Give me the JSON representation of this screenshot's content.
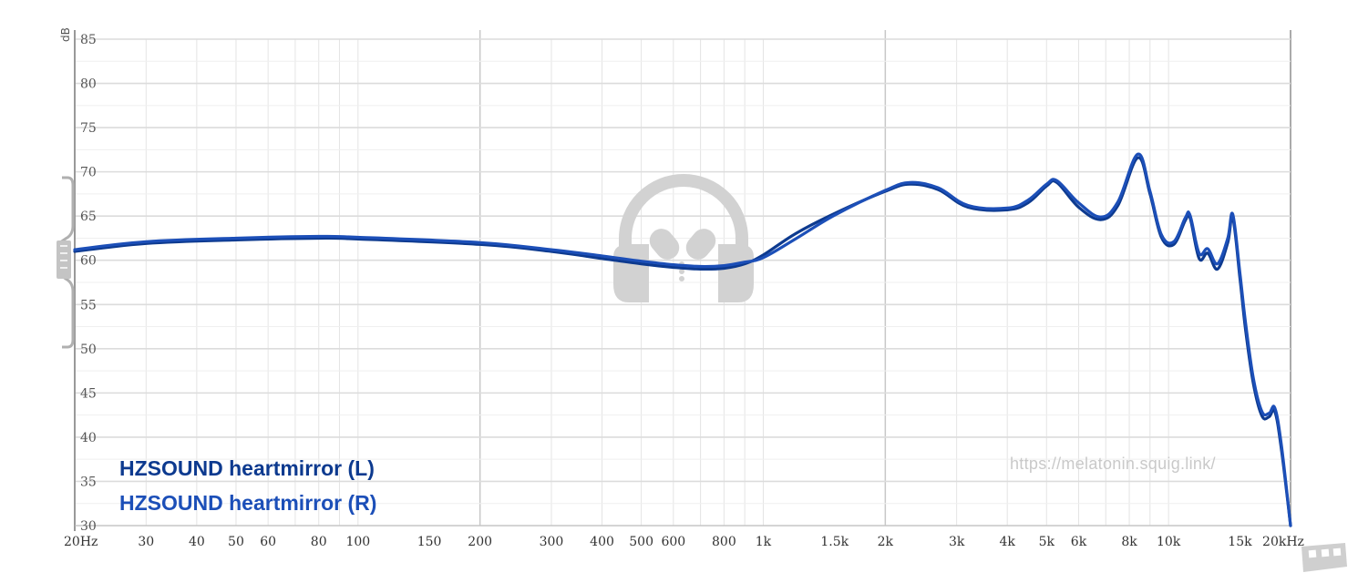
{
  "chart_data": {
    "type": "line",
    "xscale": "log",
    "xlim": [
      20,
      20000
    ],
    "ylim": [
      30,
      85
    ],
    "y_unit": "dB",
    "y_ticks": [
      85,
      80,
      75,
      70,
      65,
      60,
      55,
      50,
      45,
      40,
      35,
      30
    ],
    "x_ticks": [
      {
        "value": 20,
        "label": "20Hz"
      },
      {
        "value": 30,
        "label": "30"
      },
      {
        "value": 40,
        "label": "40"
      },
      {
        "value": 50,
        "label": "50"
      },
      {
        "value": 60,
        "label": "60"
      },
      {
        "value": 80,
        "label": "80"
      },
      {
        "value": 100,
        "label": "100"
      },
      {
        "value": 150,
        "label": "150"
      },
      {
        "value": 200,
        "label": "200"
      },
      {
        "value": 300,
        "label": "300"
      },
      {
        "value": 400,
        "label": "400"
      },
      {
        "value": 500,
        "label": "500"
      },
      {
        "value": 600,
        "label": "600"
      },
      {
        "value": 800,
        "label": "800"
      },
      {
        "value": 1000,
        "label": "1k"
      },
      {
        "value": 1500,
        "label": "1.5k"
      },
      {
        "value": 2000,
        "label": "2k"
      },
      {
        "value": 3000,
        "label": "3k"
      },
      {
        "value": 4000,
        "label": "4k"
      },
      {
        "value": 5000,
        "label": "5k"
      },
      {
        "value": 6000,
        "label": "6k"
      },
      {
        "value": 8000,
        "label": "8k"
      },
      {
        "value": 10000,
        "label": "10k"
      },
      {
        "value": 15000,
        "label": "15k"
      },
      {
        "value": 20000,
        "label": "20kHz"
      }
    ],
    "series": [
      {
        "name": "HZSOUND heartmirror (L)",
        "color": "#0d3a8f",
        "points": [
          [
            20,
            61.0
          ],
          [
            30,
            61.9
          ],
          [
            50,
            62.3
          ],
          [
            80,
            62.5
          ],
          [
            100,
            62.4
          ],
          [
            200,
            61.8
          ],
          [
            300,
            61.0
          ],
          [
            400,
            60.2
          ],
          [
            500,
            59.6
          ],
          [
            600,
            59.2
          ],
          [
            700,
            59.0
          ],
          [
            800,
            59.1
          ],
          [
            900,
            59.6
          ],
          [
            1000,
            60.6
          ],
          [
            1200,
            63.0
          ],
          [
            1500,
            65.3
          ],
          [
            2000,
            67.8
          ],
          [
            2300,
            68.6
          ],
          [
            2700,
            68.0
          ],
          [
            3200,
            66.0
          ],
          [
            4000,
            65.7
          ],
          [
            4500,
            66.5
          ],
          [
            5000,
            68.4
          ],
          [
            5300,
            68.8
          ],
          [
            6000,
            66.0
          ],
          [
            6800,
            64.6
          ],
          [
            7500,
            66.2
          ],
          [
            8400,
            71.6
          ],
          [
            9000,
            67.5
          ],
          [
            9600,
            62.6
          ],
          [
            10300,
            61.8
          ],
          [
            11000,
            64.5
          ],
          [
            11300,
            64.8
          ],
          [
            11900,
            60.2
          ],
          [
            12500,
            60.8
          ],
          [
            13200,
            59.0
          ],
          [
            14000,
            62.0
          ],
          [
            14400,
            64.8
          ],
          [
            15000,
            58.0
          ],
          [
            15500,
            52.0
          ],
          [
            16200,
            46.0
          ],
          [
            17000,
            42.4
          ],
          [
            17700,
            42.3
          ],
          [
            18300,
            42.9
          ],
          [
            19000,
            38.5
          ],
          [
            20000,
            30.0
          ]
        ]
      },
      {
        "name": "HZSOUND heartmirror (R)",
        "color": "#1c4fb8",
        "points": [
          [
            20,
            61.2
          ],
          [
            30,
            62.1
          ],
          [
            50,
            62.5
          ],
          [
            80,
            62.7
          ],
          [
            100,
            62.6
          ],
          [
            200,
            62.0
          ],
          [
            300,
            61.2
          ],
          [
            400,
            60.5
          ],
          [
            500,
            59.9
          ],
          [
            600,
            59.5
          ],
          [
            700,
            59.3
          ],
          [
            800,
            59.4
          ],
          [
            900,
            59.8
          ],
          [
            1000,
            60.3
          ],
          [
            1200,
            62.4
          ],
          [
            1500,
            65.1
          ],
          [
            2000,
            67.9
          ],
          [
            2300,
            68.8
          ],
          [
            2700,
            68.2
          ],
          [
            3200,
            66.2
          ],
          [
            4000,
            65.9
          ],
          [
            4500,
            66.8
          ],
          [
            5000,
            68.6
          ],
          [
            5300,
            69.0
          ],
          [
            6000,
            66.5
          ],
          [
            6800,
            64.9
          ],
          [
            7500,
            66.6
          ],
          [
            8400,
            72.0
          ],
          [
            9000,
            67.8
          ],
          [
            9600,
            62.9
          ],
          [
            10300,
            62.1
          ],
          [
            11000,
            64.8
          ],
          [
            11300,
            65.1
          ],
          [
            11900,
            60.8
          ],
          [
            12500,
            61.3
          ],
          [
            13200,
            59.6
          ],
          [
            14000,
            62.5
          ],
          [
            14400,
            65.2
          ],
          [
            15000,
            58.6
          ],
          [
            15500,
            52.8
          ],
          [
            16200,
            46.6
          ],
          [
            17000,
            42.9
          ],
          [
            17700,
            42.7
          ],
          [
            18300,
            43.3
          ],
          [
            19000,
            39.0
          ],
          [
            20000,
            30.0
          ]
        ]
      }
    ],
    "legend": [
      "HZSOUND heartmirror (L)",
      "HZSOUND heartmirror (R)"
    ],
    "legend_position": "bottom-left",
    "grid": true
  },
  "watermark": {
    "url": "https://melatonin.squig.link/",
    "logo_icon": "headphones-logo",
    "corner_icon": "site-badge"
  },
  "colors": {
    "grid_minor": "#e4e4e4",
    "grid_major": "#c8c8c8",
    "axis": "#999999",
    "bracket": "#b0b0b0",
    "watermark": "#d2d2d2"
  }
}
